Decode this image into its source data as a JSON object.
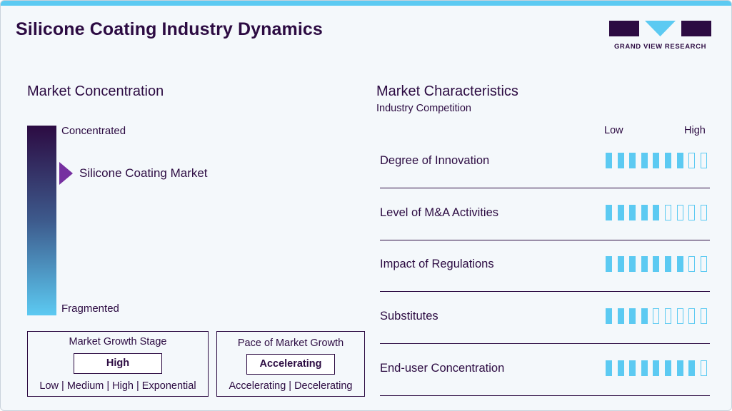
{
  "header": {
    "title": "Silicone Coating Industry Dynamics",
    "logo_text": "GRAND VIEW RESEARCH"
  },
  "colors": {
    "accent": "#5ccaf2",
    "dark": "#2c0b42",
    "marker": "#7630a0"
  },
  "concentration": {
    "title": "Market Concentration",
    "top_label": "Concentrated",
    "bottom_label": "Fragmented",
    "marker_label": "Silicone Coating Market",
    "marker_level": 0.75
  },
  "growth_stage": {
    "title": "Market Growth Stage",
    "value": "High",
    "options": [
      "Low",
      "Medium",
      "High",
      "Exponential"
    ],
    "separator": "|"
  },
  "growth_pace": {
    "title": "Pace of Market Growth",
    "value": "Accelerating",
    "options": [
      "Accelerating",
      "Decelerating"
    ],
    "separator": "|"
  },
  "characteristics": {
    "title": "Market Characteristics",
    "subtitle": "Industry Competition",
    "low_label": "Low",
    "high_label": "High"
  },
  "chart_data": {
    "type": "bar",
    "title": "Market Characteristics",
    "subtitle": "Industry Competition",
    "scale": [
      "Low",
      "High"
    ],
    "max": 9,
    "categories": [
      "Degree of Innovation",
      "Level of M&A Activities",
      "Impact of Regulations",
      "Substitutes",
      "End-user Concentration"
    ],
    "values": [
      7,
      5,
      7,
      4,
      8
    ]
  }
}
